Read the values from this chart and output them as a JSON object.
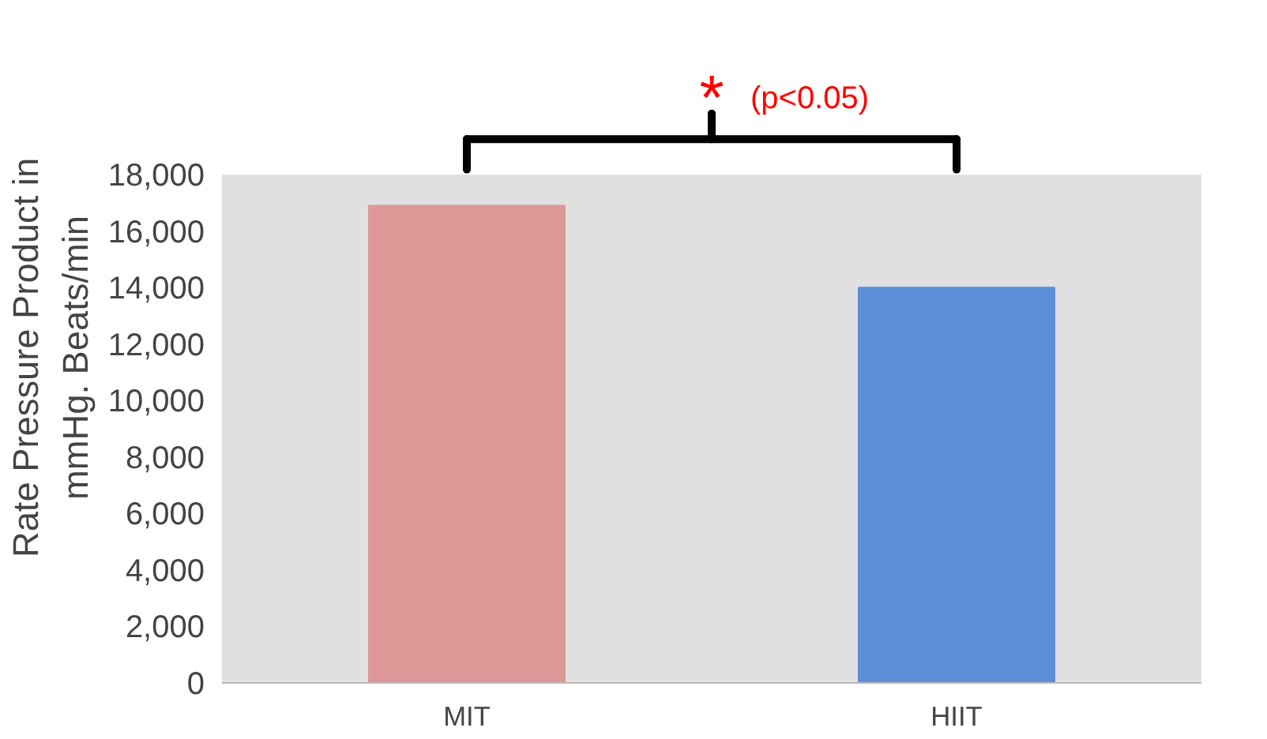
{
  "chart_data": {
    "type": "bar",
    "ylabel": "Rate Pressure Product in mmHg. Beats/min",
    "categories": [
      "MIT",
      "HIIT"
    ],
    "values": [
      16900,
      14000
    ],
    "colors": [
      "#dc9896",
      "#5a8fd8"
    ],
    "ylim": [
      0,
      18000
    ],
    "yticks": [
      {
        "value": 0,
        "label": "0"
      },
      {
        "value": 2000,
        "label": "2,000"
      },
      {
        "value": 4000,
        "label": "4,000"
      },
      {
        "value": 6000,
        "label": "6,000"
      },
      {
        "value": 8000,
        "label": "8,000"
      },
      {
        "value": 10000,
        "label": "10,000"
      },
      {
        "value": 12000,
        "label": "12,000"
      },
      {
        "value": 14000,
        "label": "14,000"
      },
      {
        "value": 16000,
        "label": "16,000"
      },
      {
        "value": 18000,
        "label": "18,000"
      }
    ],
    "grid": false,
    "annotations": [
      "*",
      "(p<0.05)"
    ]
  }
}
